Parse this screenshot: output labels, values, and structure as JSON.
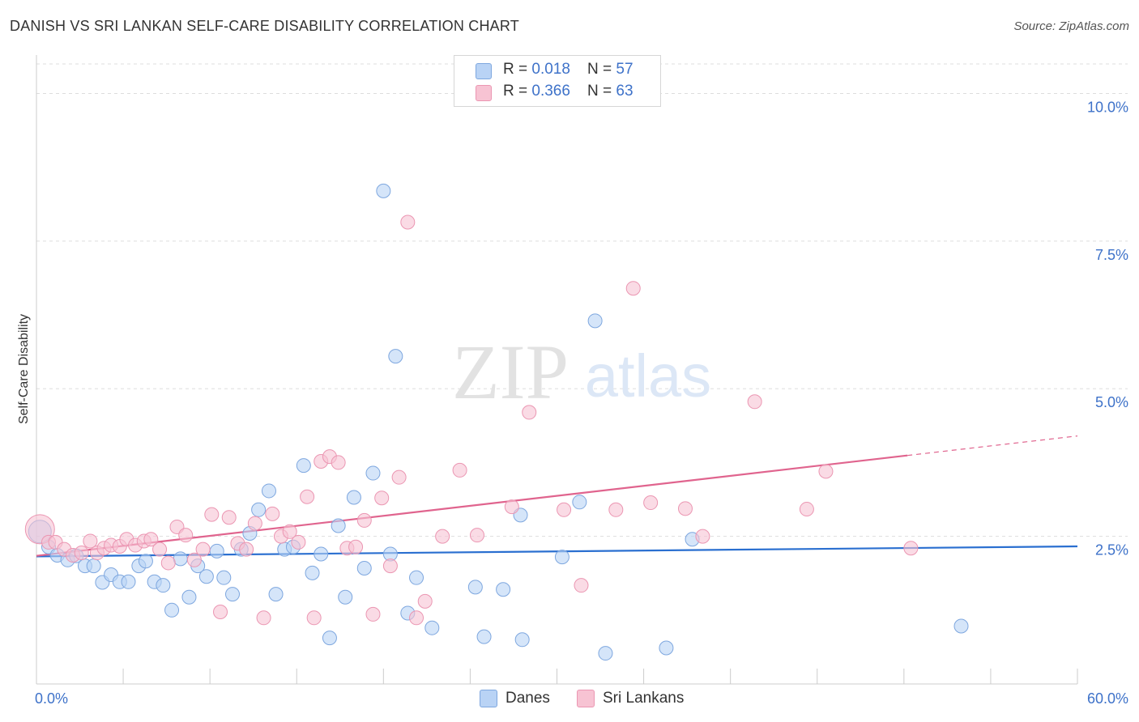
{
  "title": "DANISH VS SRI LANKAN SELF-CARE DISABILITY CORRELATION CHART",
  "source": "Source: ZipAtlas.com",
  "watermark": {
    "zip": "ZIP",
    "atlas": "atlas"
  },
  "legend": {
    "r_label": "R = ",
    "n_label": "N = ",
    "rows": [
      {
        "series": "Danes",
        "r": "0.018",
        "n": "57"
      },
      {
        "series": "Sri Lankans",
        "r": "0.366",
        "n": "63"
      }
    ]
  },
  "colors": {
    "danes_fill": "#b9d3f5",
    "danes_stroke": "#7ea7df",
    "danes_line": "#2a6fd0",
    "srilankans_fill": "#f7c3d3",
    "srilankans_stroke": "#eb96b2",
    "srilankans_line": "#e0648e",
    "tick_label": "#3e72c9",
    "grid": "#dddddd"
  },
  "chart_data": {
    "type": "scatter",
    "title": "DANISH VS SRI LANKAN SELF-CARE DISABILITY CORRELATION CHART",
    "xlabel": "",
    "ylabel": "Self-Care Disability",
    "xlim": [
      0,
      60
    ],
    "ylim": [
      0,
      10.5
    ],
    "x_tick_labels": [
      "0.0%",
      "60.0%"
    ],
    "y_ticks": [
      2.5,
      5.0,
      7.5,
      10.0
    ],
    "y_tick_labels": [
      "2.5%",
      "5.0%",
      "7.5%",
      "10.0%"
    ],
    "grid": "horizontal dashed",
    "legend_position": "top-center",
    "series": [
      {
        "name": "Danes",
        "r": 0.018,
        "n": 57,
        "trend": {
          "x": [
            0,
            60
          ],
          "y": [
            2.16,
            2.33
          ]
        },
        "points": [
          [
            0.2,
            2.58
          ],
          [
            0.7,
            2.32
          ],
          [
            1.2,
            2.18
          ],
          [
            1.8,
            2.1
          ],
          [
            2.3,
            2.17
          ],
          [
            2.8,
            2.0
          ],
          [
            3.3,
            2.0
          ],
          [
            3.8,
            1.72
          ],
          [
            4.3,
            1.85
          ],
          [
            4.8,
            1.73
          ],
          [
            5.3,
            1.73
          ],
          [
            5.9,
            2.0
          ],
          [
            6.3,
            2.08
          ],
          [
            6.8,
            1.73
          ],
          [
            7.3,
            1.67
          ],
          [
            7.8,
            1.25
          ],
          [
            8.3,
            2.12
          ],
          [
            8.8,
            1.47
          ],
          [
            9.3,
            2.0
          ],
          [
            9.8,
            1.82
          ],
          [
            10.4,
            2.25
          ],
          [
            10.8,
            1.8
          ],
          [
            11.3,
            1.52
          ],
          [
            11.8,
            2.28
          ],
          [
            12.3,
            2.55
          ],
          [
            12.8,
            2.95
          ],
          [
            13.4,
            3.27
          ],
          [
            13.8,
            1.52
          ],
          [
            14.3,
            2.28
          ],
          [
            14.8,
            2.32
          ],
          [
            15.4,
            3.7
          ],
          [
            15.9,
            1.88
          ],
          [
            16.4,
            2.2
          ],
          [
            16.9,
            0.78
          ],
          [
            17.4,
            2.68
          ],
          [
            17.8,
            1.47
          ],
          [
            18.3,
            3.16
          ],
          [
            18.9,
            1.96
          ],
          [
            19.4,
            3.57
          ],
          [
            20.0,
            8.35
          ],
          [
            20.4,
            2.2
          ],
          [
            20.7,
            5.55
          ],
          [
            21.4,
            1.2
          ],
          [
            21.9,
            1.8
          ],
          [
            22.8,
            0.95
          ],
          [
            25.3,
            1.64
          ],
          [
            25.8,
            0.8
          ],
          [
            26.9,
            1.6
          ],
          [
            27.9,
            2.86
          ],
          [
            28.0,
            0.75
          ],
          [
            30.3,
            2.15
          ],
          [
            31.3,
            3.08
          ],
          [
            32.2,
            6.15
          ],
          [
            32.8,
            0.52
          ],
          [
            36.3,
            0.61
          ],
          [
            37.8,
            2.45
          ],
          [
            53.3,
            0.98
          ]
        ]
      },
      {
        "name": "Sri Lankans",
        "r": 0.366,
        "n": 63,
        "trend": {
          "x": [
            0,
            50.2
          ],
          "y": [
            2.17,
            3.87
          ]
        },
        "trend_extension": {
          "x": [
            50.2,
            60
          ],
          "y": [
            3.87,
            4.2
          ]
        },
        "points": [
          [
            0.2,
            2.62
          ],
          [
            0.7,
            2.4
          ],
          [
            1.1,
            2.4
          ],
          [
            1.6,
            2.28
          ],
          [
            2.1,
            2.18
          ],
          [
            2.6,
            2.22
          ],
          [
            3.1,
            2.42
          ],
          [
            3.5,
            2.22
          ],
          [
            3.9,
            2.3
          ],
          [
            4.3,
            2.35
          ],
          [
            4.8,
            2.33
          ],
          [
            5.2,
            2.45
          ],
          [
            5.7,
            2.35
          ],
          [
            6.2,
            2.42
          ],
          [
            6.6,
            2.45
          ],
          [
            7.1,
            2.28
          ],
          [
            7.6,
            2.05
          ],
          [
            8.1,
            2.66
          ],
          [
            8.6,
            2.52
          ],
          [
            9.1,
            2.1
          ],
          [
            9.6,
            2.28
          ],
          [
            10.1,
            2.87
          ],
          [
            10.6,
            1.22
          ],
          [
            11.1,
            2.82
          ],
          [
            11.6,
            2.38
          ],
          [
            12.1,
            2.28
          ],
          [
            12.6,
            2.72
          ],
          [
            13.1,
            1.12
          ],
          [
            13.6,
            2.88
          ],
          [
            14.1,
            2.5
          ],
          [
            14.6,
            2.58
          ],
          [
            15.1,
            2.4
          ],
          [
            15.6,
            3.17
          ],
          [
            16.0,
            1.12
          ],
          [
            16.4,
            3.77
          ],
          [
            16.9,
            3.85
          ],
          [
            17.4,
            3.75
          ],
          [
            17.9,
            2.3
          ],
          [
            18.4,
            2.32
          ],
          [
            18.9,
            2.77
          ],
          [
            19.4,
            1.18
          ],
          [
            19.9,
            3.15
          ],
          [
            20.4,
            2.0
          ],
          [
            20.9,
            3.5
          ],
          [
            21.4,
            7.82
          ],
          [
            21.9,
            1.12
          ],
          [
            22.4,
            1.4
          ],
          [
            23.4,
            2.5
          ],
          [
            24.4,
            3.62
          ],
          [
            25.4,
            2.52
          ],
          [
            27.4,
            3.0
          ],
          [
            28.4,
            4.6
          ],
          [
            30.4,
            2.95
          ],
          [
            31.4,
            1.67
          ],
          [
            33.4,
            2.95
          ],
          [
            34.4,
            6.7
          ],
          [
            35.4,
            3.07
          ],
          [
            37.4,
            2.97
          ],
          [
            38.4,
            2.5
          ],
          [
            41.4,
            4.78
          ],
          [
            44.4,
            2.96
          ],
          [
            45.5,
            3.6
          ],
          [
            50.4,
            2.3
          ]
        ]
      }
    ]
  }
}
